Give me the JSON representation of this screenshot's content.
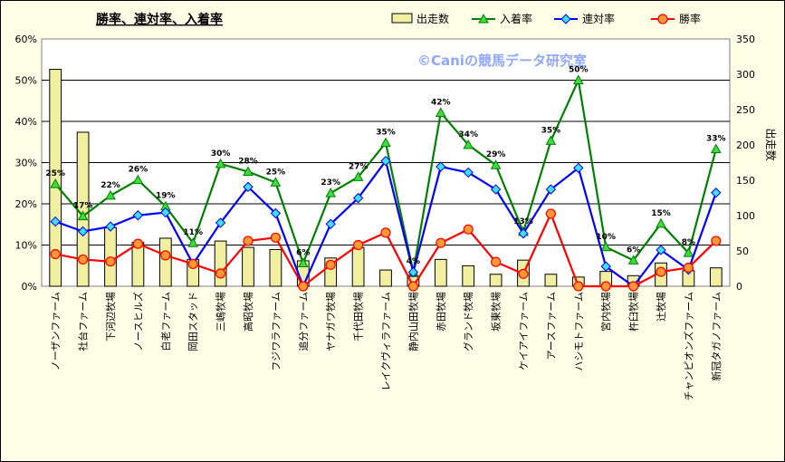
{
  "chart_data": {
    "type": "bar-line combo",
    "title": "勝率、連対率、入着率",
    "watermark": "©Caniの競馬データ研究室",
    "y2label": "出走数",
    "categories": [
      "ノーザンファーム",
      "社台ファーム",
      "下河辺牧場",
      "ノースヒルズ",
      "白老ファーム",
      "岡田スタッド",
      "三嶋牧場",
      "高昭牧場",
      "フジワラファーム",
      "追分ファーム",
      "ヤナガワ牧場",
      "千代田牧場",
      "レイクヴィラファーム",
      "静内山田牧場",
      "赤田牧場",
      "グランド牧場",
      "坂東牧場",
      "ケイアイファーム",
      "アースファーム",
      "ハシモトファーム",
      "宮内牧場",
      "杵臼牧場",
      "辻牧場",
      "チャンピオンズファーム",
      "新冠タガノファーム"
    ],
    "yaxis": {
      "min": 0,
      "max": 60,
      "ticks": [
        "0%",
        "10%",
        "20%",
        "30%",
        "40%",
        "50%",
        "60%"
      ]
    },
    "y2axis": {
      "min": 0,
      "max": 350,
      "ticks": [
        "0",
        "50",
        "100",
        "150",
        "200",
        "250",
        "300",
        "350"
      ]
    },
    "grid": true,
    "legend_position": "top",
    "series": [
      {
        "name": "出走数",
        "type": "bar",
        "axis": "right",
        "color": "#f0f0a0",
        "values": [
          307,
          218,
          83,
          62,
          68,
          38,
          64,
          55,
          52,
          36,
          40,
          55,
          23,
          14,
          38,
          29,
          17,
          37,
          17,
          13,
          21,
          15,
          33,
          22,
          26
        ]
      },
      {
        "name": "入着率",
        "type": "line",
        "axis": "left",
        "color": "#008000",
        "marker": "triangle",
        "values": [
          24.8,
          17.0,
          22.0,
          25.8,
          19.4,
          10.5,
          29.7,
          27.8,
          25.2,
          5.6,
          22.6,
          26.5,
          34.8,
          3.5,
          42.1,
          34.3,
          29.4,
          13.2,
          35.3,
          50.0,
          9.5,
          6.3,
          15.2,
          8.1,
          33.3
        ],
        "labels": [
          "25%",
          "17%",
          "22%",
          "26%",
          "19%",
          "11%",
          "30%",
          "28%",
          "25%",
          "6%",
          "23%",
          "27%",
          "35%",
          "4%",
          "42%",
          "34%",
          "29%",
          "13%",
          "35%",
          "50%",
          "10%",
          "6%",
          "15%",
          "8%",
          "33%"
        ]
      },
      {
        "name": "連対率",
        "type": "line",
        "axis": "left",
        "color": "#0000ff",
        "marker": "diamond",
        "values": [
          15.7,
          13.3,
          14.5,
          17.2,
          17.9,
          5.4,
          15.4,
          24.1,
          17.7,
          0,
          15.1,
          21.4,
          30.4,
          3.4,
          29.0,
          27.6,
          23.5,
          12.8,
          23.5,
          28.7,
          4.8,
          0,
          8.8,
          4.0,
          22.7
        ]
      },
      {
        "name": "勝率",
        "type": "line",
        "axis": "left",
        "color": "#ff0000",
        "marker": "circle",
        "values": [
          7.8,
          6.5,
          6.0,
          10.3,
          7.5,
          5.4,
          3.1,
          11.0,
          11.8,
          0,
          5.2,
          10.0,
          13.0,
          0,
          10.5,
          13.8,
          5.9,
          3.0,
          17.6,
          0,
          0,
          0,
          3.5,
          4.5,
          11.0
        ]
      }
    ]
  }
}
